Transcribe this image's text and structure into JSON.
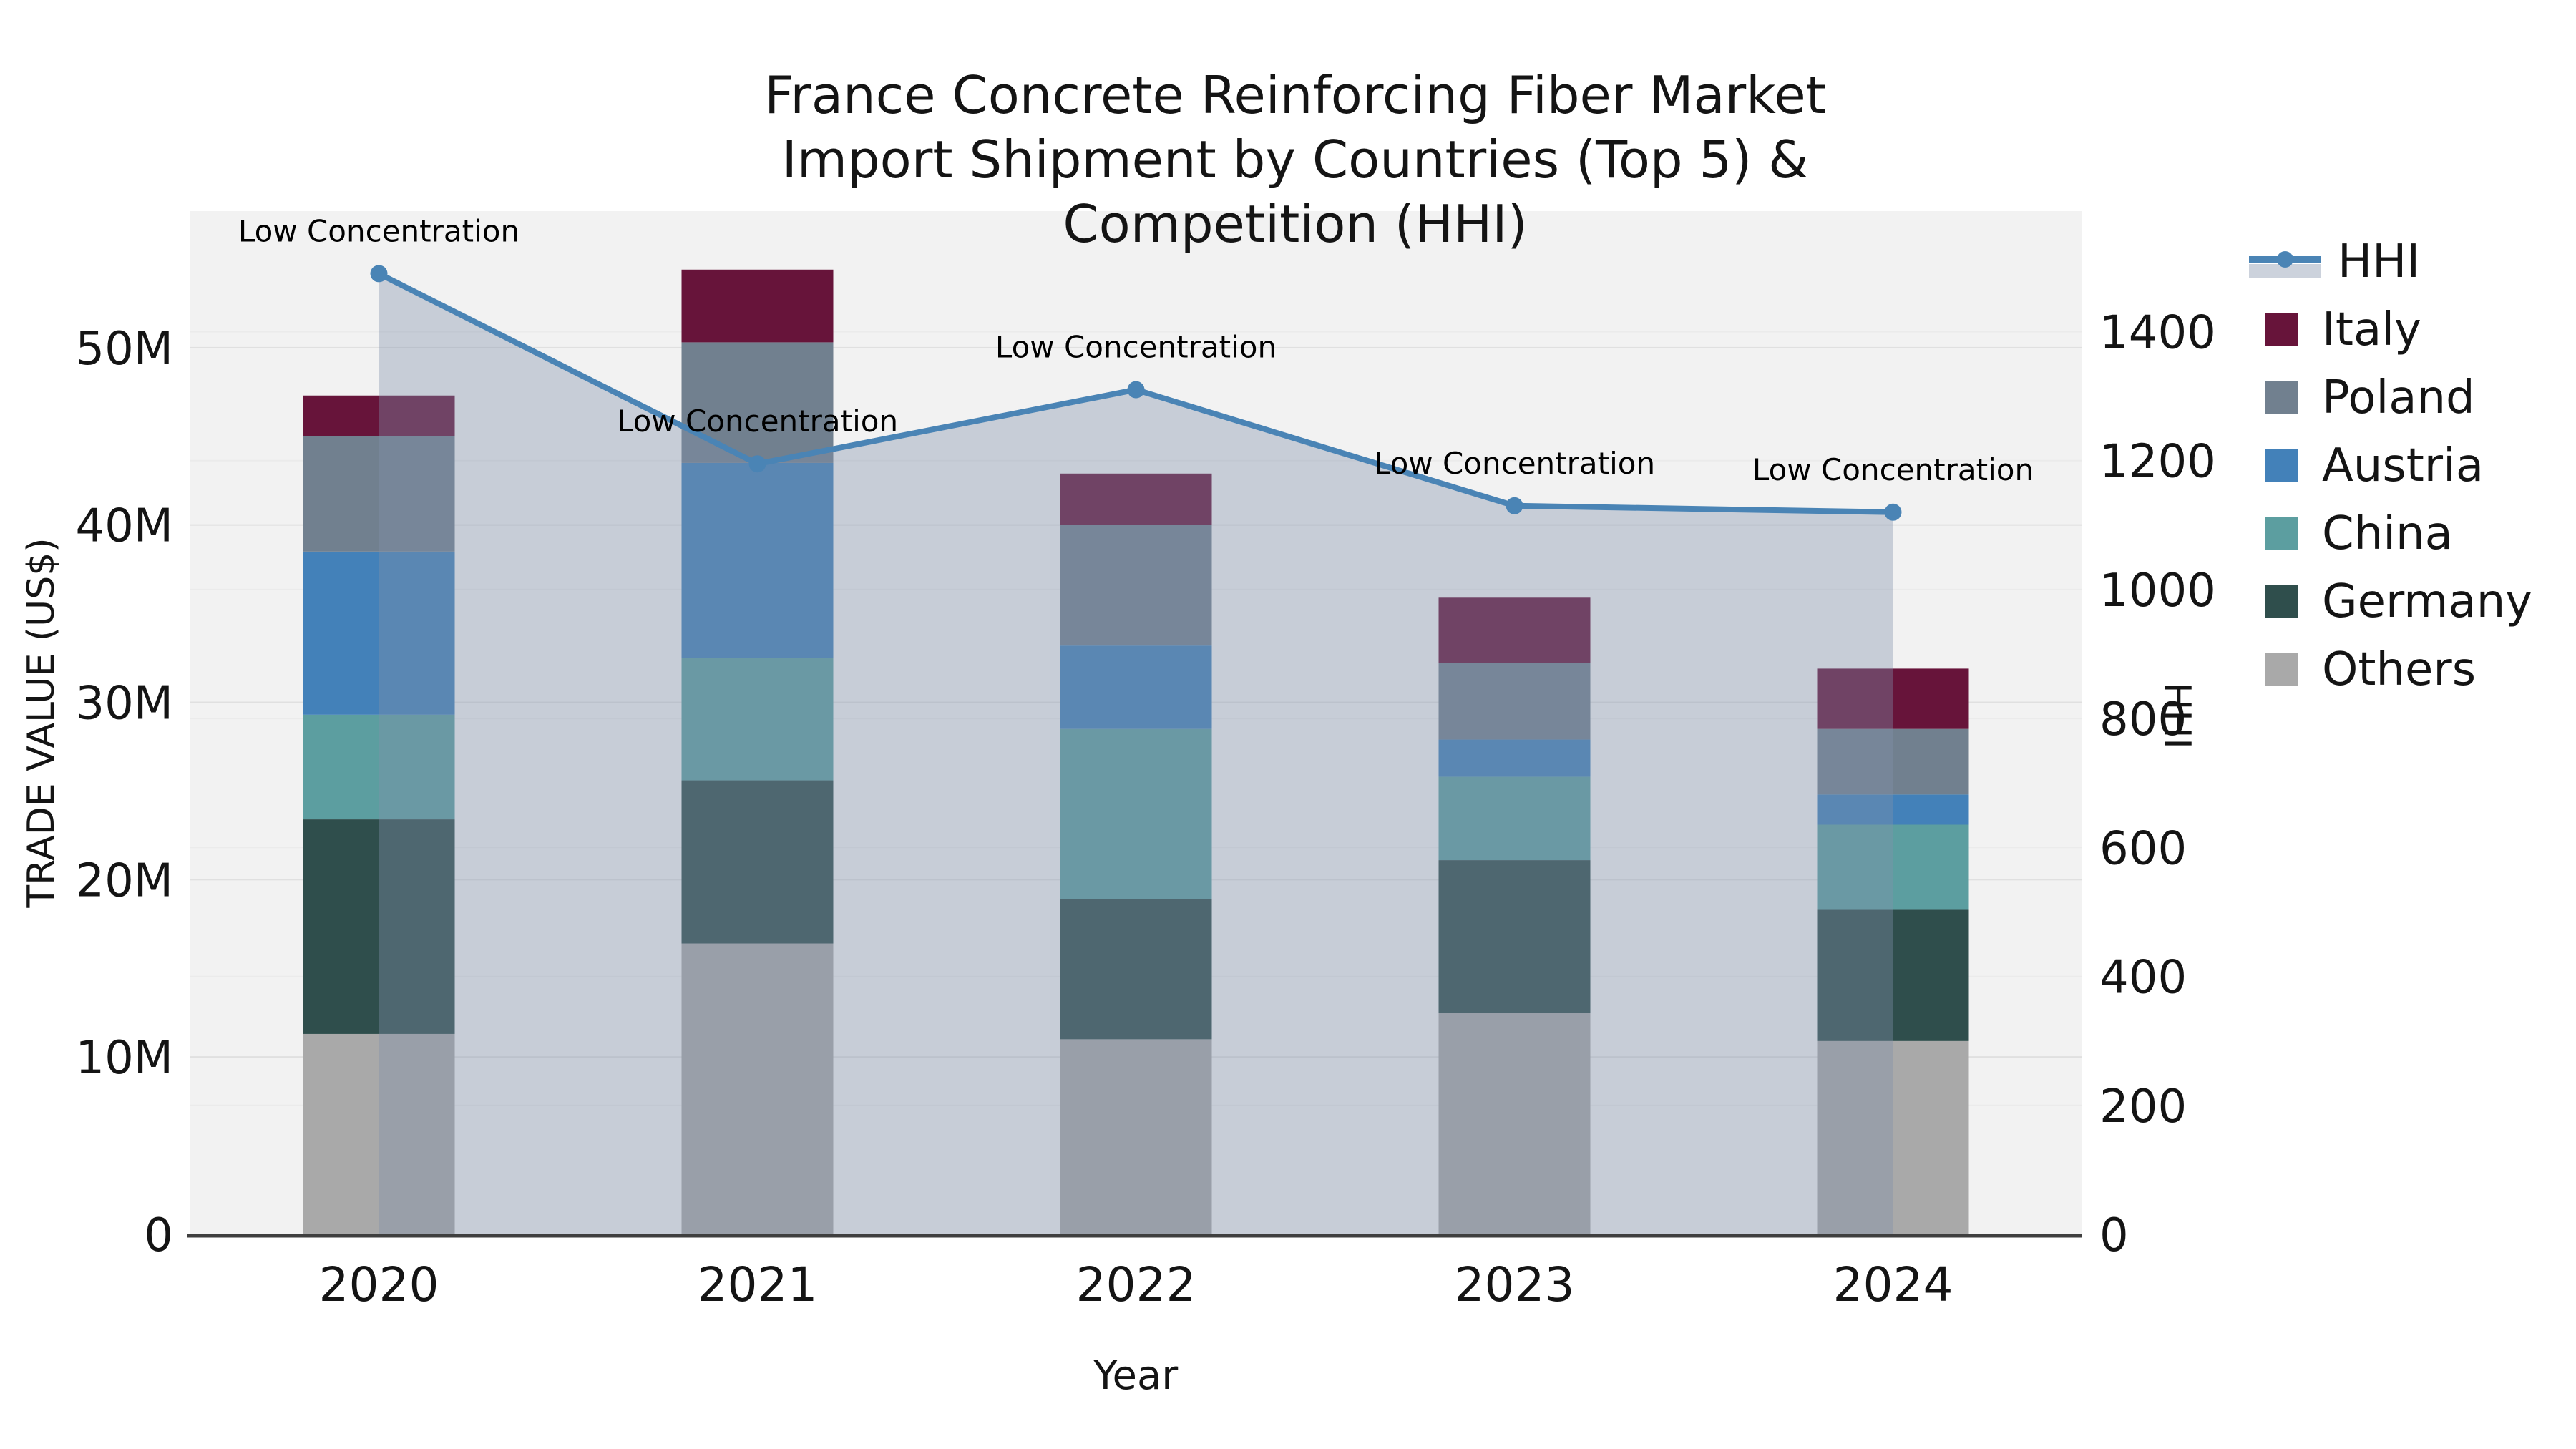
{
  "title": {
    "line1": "France Concrete Reinforcing Fiber Market",
    "line2": "Import Shipment by Countries (Top 5) & Competition (HHI)"
  },
  "axes": {
    "left_label": "TRADE VALUE (US$)",
    "right_label": "HHI",
    "x_label": "Year"
  },
  "legend": [
    {
      "label": "HHI",
      "type": "line-with-area",
      "color": "#4a84b5"
    },
    {
      "label": "Italy",
      "type": "swatch",
      "color": "#67143a"
    },
    {
      "label": "Poland",
      "type": "swatch",
      "color": "#71808f"
    },
    {
      "label": "Austria",
      "type": "swatch",
      "color": "#4381b9"
    },
    {
      "label": "China",
      "type": "swatch",
      "color": "#5c9ea0"
    },
    {
      "label": "Germany",
      "type": "swatch",
      "color": "#2f4e4c"
    },
    {
      "label": "Others",
      "type": "swatch",
      "color": "#a9a9a9"
    }
  ],
  "chart_data": {
    "type": "stacked-bar-with-line",
    "title": "France Concrete Reinforcing Fiber Market — Import Shipment by Countries (Top 5) & Competition (HHI)",
    "categories": [
      "2020",
      "2021",
      "2022",
      "2023",
      "2024"
    ],
    "xlabel": "Year",
    "ylabel_left": "TRADE VALUE (US$)",
    "ylabel_right": "HHI",
    "ylim_left_millions": [
      0,
      57.7
    ],
    "ylim_right": [
      0,
      1587
    ],
    "grid": true,
    "legend_position": "right-outside",
    "series_stack_order_bottom_to_top": [
      "Others",
      "Germany",
      "China",
      "Austria",
      "Poland",
      "Italy"
    ],
    "series": [
      {
        "name": "Others",
        "color": "#a9a9a9",
        "values_millions": [
          11.3,
          16.4,
          11.0,
          12.5,
          10.9
        ]
      },
      {
        "name": "Germany",
        "color": "#2f4e4c",
        "values_millions": [
          12.1,
          9.2,
          7.9,
          8.6,
          7.4
        ]
      },
      {
        "name": "China",
        "color": "#5c9ea0",
        "values_millions": [
          5.9,
          6.9,
          9.6,
          4.7,
          4.8
        ]
      },
      {
        "name": "Austria",
        "color": "#4381b9",
        "values_millions": [
          9.2,
          11.0,
          4.7,
          2.1,
          1.7
        ]
      },
      {
        "name": "Poland",
        "color": "#71808f",
        "values_millions": [
          6.5,
          6.8,
          6.8,
          4.3,
          3.7
        ]
      },
      {
        "name": "Italy",
        "color": "#67143a",
        "values_millions": [
          2.3,
          4.1,
          2.9,
          3.7,
          3.4
        ]
      }
    ],
    "bar_totals_millions": [
      47.3,
      54.4,
      42.9,
      35.9,
      31.9
    ],
    "hhi_line": {
      "name": "HHI",
      "color": "#4a84b5",
      "area_fill": "rgba(130,144,171,0.38)",
      "values": [
        1490,
        1195,
        1310,
        1130,
        1120
      ]
    },
    "annotations": [
      {
        "x": "2020",
        "text": "Low Concentration"
      },
      {
        "x": "2021",
        "text": "Low Concentration"
      },
      {
        "x": "2022",
        "text": "Low Concentration"
      },
      {
        "x": "2023",
        "text": "Low Concentration"
      },
      {
        "x": "2024",
        "text": "Low Concentration"
      }
    ],
    "y_left_ticks": [
      "0",
      "10M",
      "20M",
      "30M",
      "40M",
      "50M"
    ],
    "y_right_ticks": [
      "0",
      "200",
      "400",
      "600",
      "800",
      "1000",
      "1200",
      "1400"
    ]
  },
  "colors": {
    "plot_background": "#f2f2f2",
    "figure_background": "#ffffff",
    "gridline_major": "#e0e0e0",
    "gridline_minor": "#ebebeb",
    "axis_line": "#3f3f3f",
    "annotation_text": "#000000",
    "tick_text": "#141414"
  }
}
